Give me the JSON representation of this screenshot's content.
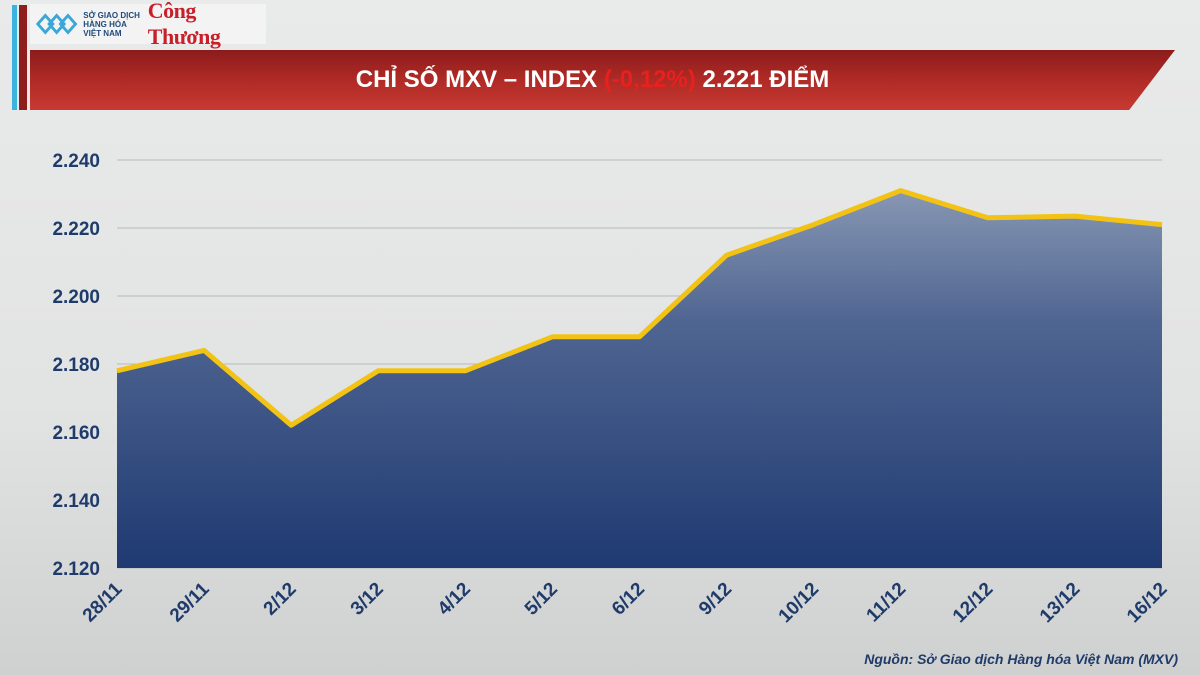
{
  "header": {
    "logo_mxv": "SỞ GIAO DỊCH HÀNG HÓA VIỆT NAM",
    "logo_ct": "Công Thương",
    "title_main": "CHỈ SỐ MXV – INDEX ",
    "title_change": "(-0,12%)",
    "title_value": " 2.221 ĐIỂM"
  },
  "colors": {
    "line": "#f2c314",
    "fill_top": "#8797b3",
    "fill_bottom": "#1f3a72",
    "change_negative": "#e8201e",
    "banner": "#b02a26"
  },
  "chart_data": {
    "type": "area",
    "title": "CHỈ SỐ MXV – INDEX (-0,12%) 2.221 ĐIỂM",
    "categories": [
      "28/11",
      "29/11",
      "2/12",
      "3/12",
      "4/12",
      "5/12",
      "6/12",
      "9/12",
      "10/12",
      "11/12",
      "12/12",
      "13/12",
      "16/12"
    ],
    "values": [
      2178,
      2184,
      2162,
      2178,
      2178,
      2188,
      2188,
      2212,
      2221,
      2231,
      2223,
      2223.5,
      2221
    ],
    "ylim": [
      2120,
      2240
    ],
    "yticks": [
      2120,
      2140,
      2160,
      2180,
      2200,
      2220,
      2240
    ],
    "ytick_labels": [
      "2.120",
      "2.140",
      "2.160",
      "2.180",
      "2.200",
      "2.220",
      "2.240"
    ],
    "grid": true
  },
  "footer": {
    "source": "Nguồn: Sở Giao dịch Hàng hóa Việt Nam (MXV)"
  }
}
